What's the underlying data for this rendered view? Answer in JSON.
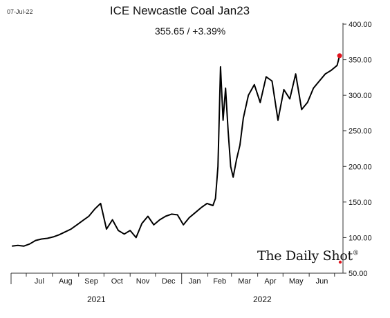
{
  "header": {
    "date": "07-Jul-22",
    "title": "ICE Newcastle Coal Jan23",
    "subtitle": "355.65  /  +3.39%"
  },
  "watermark": {
    "text": "The Daily Shot",
    "mark": "®"
  },
  "colors": {
    "line": "#000000",
    "last_point": "#e0141e",
    "axis": "#333333"
  },
  "chart_data": {
    "type": "line",
    "title": "ICE Newcastle Coal Jan23",
    "subtitle": "355.65  /  +3.39%",
    "y_axis": {
      "position": "right",
      "min": 50,
      "max": 400,
      "ticks": [
        "400.00",
        "350.00",
        "300.00",
        "250.00",
        "200.00",
        "150.00",
        "100.00",
        "50.00"
      ]
    },
    "x_axis": {
      "months": [
        "Jul",
        "Aug",
        "Sep",
        "Oct",
        "Nov",
        "Dec",
        "Jan",
        "Feb",
        "Mar",
        "Apr",
        "May",
        "Jun"
      ],
      "years": [
        "2021",
        "2022"
      ]
    },
    "grid": false,
    "series": [
      {
        "x": [
          "2021-06-14",
          "2021-06-21",
          "2021-06-28",
          "2021-07-05",
          "2021-07-12",
          "2021-07-19",
          "2021-07-26",
          "2021-08-02",
          "2021-08-09",
          "2021-08-16",
          "2021-08-23",
          "2021-08-30",
          "2021-09-06",
          "2021-09-13",
          "2021-09-20",
          "2021-09-27",
          "2021-10-04",
          "2021-10-11",
          "2021-10-18",
          "2021-10-25",
          "2021-11-01",
          "2021-11-08",
          "2021-11-15",
          "2021-11-22",
          "2021-11-29",
          "2021-12-06",
          "2021-12-13",
          "2021-12-20",
          "2021-12-27",
          "2022-01-03",
          "2022-01-10",
          "2022-01-17",
          "2022-01-24",
          "2022-01-31",
          "2022-02-07",
          "2022-02-10",
          "2022-02-13",
          "2022-02-16",
          "2022-02-19",
          "2022-02-22",
          "2022-02-25",
          "2022-02-28",
          "2022-03-03",
          "2022-03-07",
          "2022-03-11",
          "2022-03-15",
          "2022-03-21",
          "2022-03-28",
          "2022-04-04",
          "2022-04-11",
          "2022-04-18",
          "2022-04-25",
          "2022-05-02",
          "2022-05-09",
          "2022-05-16",
          "2022-05-23",
          "2022-05-30",
          "2022-06-06",
          "2022-06-13",
          "2022-06-20",
          "2022-06-27",
          "2022-07-04",
          "2022-07-07"
        ],
        "y": [
          88,
          89,
          88,
          91,
          96,
          98,
          99,
          101,
          104,
          108,
          112,
          118,
          124,
          130,
          140,
          148,
          112,
          125,
          110,
          105,
          110,
          100,
          120,
          130,
          118,
          125,
          130,
          133,
          132,
          118,
          128,
          135,
          142,
          148,
          145,
          155,
          200,
          340,
          265,
          310,
          250,
          200,
          185,
          210,
          230,
          268,
          300,
          315,
          290,
          326,
          320,
          265,
          308,
          295,
          330,
          280,
          290,
          310,
          320,
          330,
          335,
          342,
          355.65
        ]
      }
    ],
    "last_value": 355.65
  }
}
